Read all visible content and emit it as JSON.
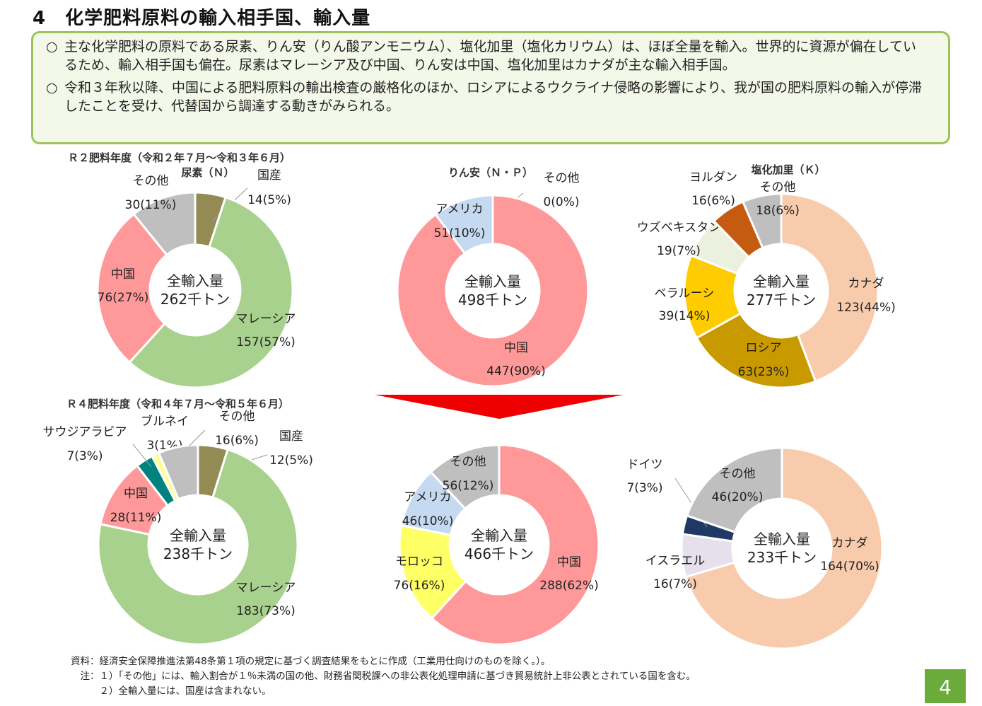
{
  "title": "4　化学肥料原料の輸入相手国、輸入量",
  "summary": {
    "bullet_mark": "○",
    "bullets": [
      "主な化学肥料の原料である尿素、りん安（りん酸アンモニウム）、塩化加里（塩化カリウム）は、ほぼ全量を輸入。世界的に資源が偏在しているため、輸入相手国も偏在。尿素はマレーシア及び中国、りん安は中国、塩化加里はカナダが主な輸入相手国。",
      "令和３年秋以降、中国による肥料原料の輸出検査の厳格化のほか、ロシアによるウクライナ侵略の影響により、我が国の肥料原料の輸入が停滞したことを受け、代替国から調達する動きがみられる。"
    ]
  },
  "periods": {
    "r2": "Ｒ２肥料年度（令和２年７月～令和３年６月）",
    "r4": "Ｒ４肥料年度（令和４年７月～令和５年６月）"
  },
  "colors": {
    "domestic": "#948a54",
    "malaysia": "#a9d18e",
    "china": "#ff9999",
    "other": "#bfbfbf",
    "usa": "#c5d9f1",
    "canada": "#f8cbad",
    "russia": "#c89a00",
    "belarus": "#ffcc00",
    "uzbekistan": "#ebf1de",
    "jordan": "#c55a11",
    "saudi": "#00827f",
    "brunei": "#ffff99",
    "morocco": "#ffff66",
    "germany": "#1f3864",
    "israel": "#e6e0ec",
    "arrow": "#ee0000",
    "ring_border": "#ffffff"
  },
  "chart_data": [
    {
      "type": "pie",
      "id": "urea-r2",
      "title": "尿素（Ｎ）",
      "center_label_1": "全輸入量",
      "center_label_2": "262千トン",
      "slices": [
        {
          "name": "国産",
          "value": 14,
          "label": "14(5%)",
          "color": "domestic"
        },
        {
          "name": "マレーシア",
          "value": 157,
          "label": "157(57%)",
          "color": "malaysia"
        },
        {
          "name": "中国",
          "value": 76,
          "label": "76(27%)",
          "color": "china"
        },
        {
          "name": "その他",
          "value": 30,
          "label": "30(11%)",
          "color": "other"
        }
      ]
    },
    {
      "type": "pie",
      "id": "dap-r2",
      "title": "りん安（Ｎ・Ｐ）",
      "center_label_1": "全輸入量",
      "center_label_2": "498千トン",
      "slices": [
        {
          "name": "その他",
          "value": 0,
          "label": "0(0%)",
          "color": "other"
        },
        {
          "name": "中国",
          "value": 447,
          "label": "447(90%)",
          "color": "china"
        },
        {
          "name": "アメリカ",
          "value": 51,
          "label": "51(10%)",
          "color": "usa"
        }
      ]
    },
    {
      "type": "pie",
      "id": "kcl-r2",
      "title": "塩化加里（Ｋ）",
      "center_label_1": "全輸入量",
      "center_label_2": "277千トン",
      "slices": [
        {
          "name": "カナダ",
          "value": 123,
          "label": "123(44%)",
          "color": "canada"
        },
        {
          "name": "ロシア",
          "value": 63,
          "label": "63(23%)",
          "color": "russia"
        },
        {
          "name": "ベラルーシ",
          "value": 39,
          "label": "39(14%)",
          "color": "belarus"
        },
        {
          "name": "ウズベキスタン",
          "value": 19,
          "label": "19(7%)",
          "color": "uzbekistan"
        },
        {
          "name": "ヨルダン",
          "value": 16,
          "label": "16(6%)",
          "color": "jordan"
        },
        {
          "name": "その他",
          "value": 18,
          "label": "18(6%)",
          "color": "other"
        }
      ]
    },
    {
      "type": "pie",
      "id": "urea-r4",
      "title": "",
      "center_label_1": "全輸入量",
      "center_label_2": "238千トン",
      "slices": [
        {
          "name": "国産",
          "value": 12,
          "label": "12(5%)",
          "color": "domestic"
        },
        {
          "name": "マレーシア",
          "value": 183,
          "label": "183(73%)",
          "color": "malaysia"
        },
        {
          "name": "中国",
          "value": 28,
          "label": "28(11%)",
          "color": "china"
        },
        {
          "name": "サウジアラビア",
          "value": 7,
          "label": "7(3%)",
          "color": "saudi"
        },
        {
          "name": "ブルネイ",
          "value": 3,
          "label": "3(1%)",
          "color": "brunei"
        },
        {
          "name": "その他",
          "value": 16,
          "label": "16(6%)",
          "color": "other"
        }
      ]
    },
    {
      "type": "pie",
      "id": "dap-r4",
      "title": "",
      "center_label_1": "全輸入量",
      "center_label_2": "466千トン",
      "slices": [
        {
          "name": "中国",
          "value": 288,
          "label": "288(62%)",
          "color": "china"
        },
        {
          "name": "モロッコ",
          "value": 76,
          "label": "76(16%)",
          "color": "morocco"
        },
        {
          "name": "アメリカ",
          "value": 46,
          "label": "46(10%)",
          "color": "usa"
        },
        {
          "name": "その他",
          "value": 56,
          "label": "56(12%)",
          "color": "other"
        }
      ]
    },
    {
      "type": "pie",
      "id": "kcl-r4",
      "title": "",
      "center_label_1": "全輸入量",
      "center_label_2": "233千トン",
      "slices": [
        {
          "name": "カナダ",
          "value": 164,
          "label": "164(70%)",
          "color": "canada"
        },
        {
          "name": "イスラエル",
          "value": 16,
          "label": "16(7%)",
          "color": "israel"
        },
        {
          "name": "ドイツ",
          "value": 7,
          "label": "7(3%)",
          "color": "germany"
        },
        {
          "name": "その他",
          "value": 46,
          "label": "46(20%)",
          "color": "other"
        }
      ]
    }
  ],
  "notes": [
    "資料：経済安全保障推進法第48条第１項の規定に基づく調査結果をもとに作成（工業用仕向けのものを除く。）。",
    "　注：１）「その他」には、輸入割合が１％未満の国の他、財務省関税課への非公表化処理申請に基づき貿易統計上非公表とされている国を含む。",
    "　　　２）全輸入量には、国産は含まれない。"
  ],
  "page_number": "4"
}
